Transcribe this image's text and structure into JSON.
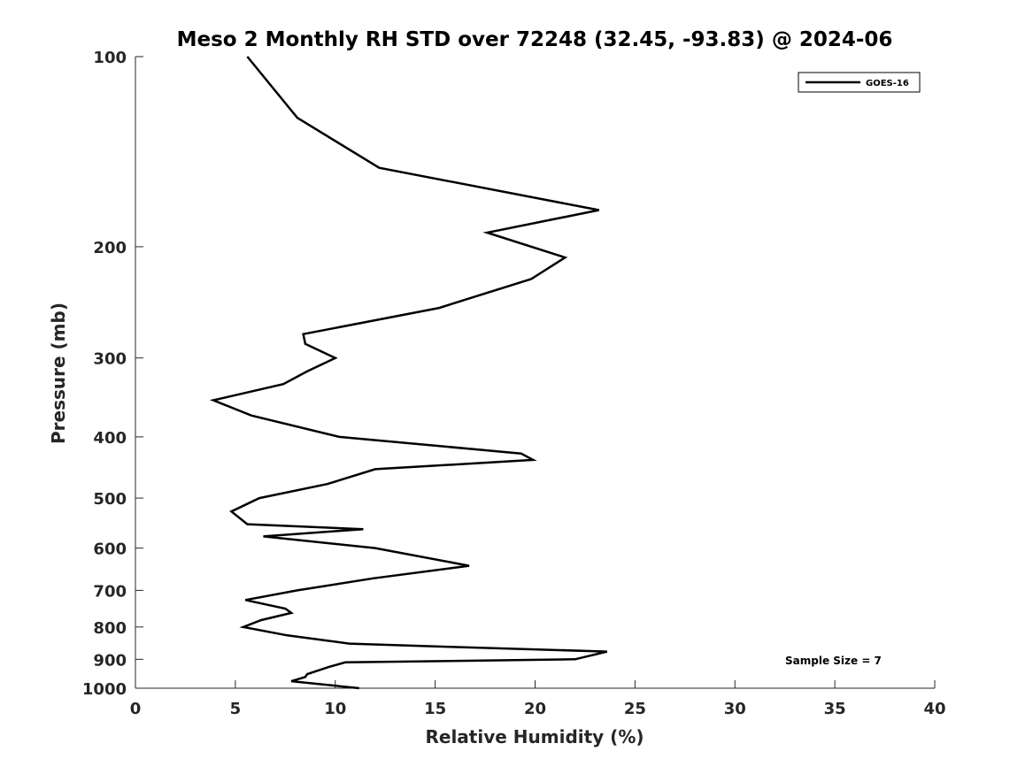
{
  "chart_data": {
    "type": "line",
    "title": "Meso 2 Monthly RH STD over 72248 (32.45, -93.83) @ 2024-06",
    "xlabel": "Relative Humidity (%)",
    "ylabel": "Pressure (mb)",
    "xlim": [
      0,
      40
    ],
    "ylim": [
      100,
      1000
    ],
    "y_scale": "log",
    "y_direction": "reversed",
    "x_ticks": [
      0,
      5,
      10,
      15,
      20,
      25,
      30,
      35,
      40
    ],
    "x_tick_labels": [
      "0",
      "5",
      "10",
      "15",
      "20",
      "25",
      "30",
      "35",
      "40"
    ],
    "y_ticks": [
      100,
      200,
      300,
      400,
      500,
      600,
      700,
      800,
      900,
      1000
    ],
    "y_tick_labels": [
      "100",
      "200",
      "300",
      "400",
      "500",
      "600",
      "700",
      "800",
      "900",
      "1000"
    ],
    "grid": false,
    "legend": {
      "position": "top-right",
      "entries": [
        "GOES-16"
      ]
    },
    "annotations": [
      "Sample Size = 7"
    ],
    "series": [
      {
        "name": "GOES-16",
        "color": "#000000",
        "points": [
          [
            5.6,
            100
          ],
          [
            8.1,
            125
          ],
          [
            12.2,
            150
          ],
          [
            23.2,
            175
          ],
          [
            17.6,
            190
          ],
          [
            21.5,
            208
          ],
          [
            19.8,
            225
          ],
          [
            15.2,
            250
          ],
          [
            8.4,
            275
          ],
          [
            8.5,
            285
          ],
          [
            10.0,
            300
          ],
          [
            8.6,
            315
          ],
          [
            7.4,
            330
          ],
          [
            3.9,
            350
          ],
          [
            5.8,
            370
          ],
          [
            10.2,
            400
          ],
          [
            19.3,
            425
          ],
          [
            19.9,
            435
          ],
          [
            12.0,
            450
          ],
          [
            9.6,
            475
          ],
          [
            6.2,
            500
          ],
          [
            4.8,
            525
          ],
          [
            5.6,
            550
          ],
          [
            11.4,
            560
          ],
          [
            6.4,
            575
          ],
          [
            12.0,
            600
          ],
          [
            16.7,
            640
          ],
          [
            11.9,
            670
          ],
          [
            8.1,
            700
          ],
          [
            5.5,
            725
          ],
          [
            7.5,
            748
          ],
          [
            7.8,
            760
          ],
          [
            6.3,
            780
          ],
          [
            5.4,
            800
          ],
          [
            7.6,
            825
          ],
          [
            10.7,
            850
          ],
          [
            15.7,
            860
          ],
          [
            23.6,
            875
          ],
          [
            22.0,
            900
          ],
          [
            10.5,
            910
          ],
          [
            9.7,
            925
          ],
          [
            8.6,
            950
          ],
          [
            8.5,
            960
          ],
          [
            7.8,
            975
          ],
          [
            11.2,
            1000
          ]
        ]
      }
    ]
  }
}
